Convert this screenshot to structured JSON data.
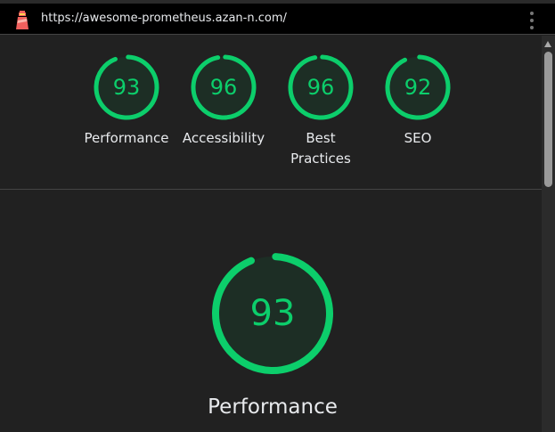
{
  "header": {
    "url": "https://awesome-prometheus.azan-n.com/",
    "logo_icon": "lighthouse-icon",
    "menu_icon": "kebab-menu-icon"
  },
  "colors": {
    "pass": "#0cce6b",
    "gauge_fill": "#1d2e25",
    "background": "#212121"
  },
  "summary": [
    {
      "label": "Performance",
      "score": 93
    },
    {
      "label": "Accessibility",
      "score": 96
    },
    {
      "label": "Best Practices",
      "score": 96
    },
    {
      "label": "SEO",
      "score": 92
    }
  ],
  "detail": {
    "label": "Performance",
    "score": 93
  }
}
